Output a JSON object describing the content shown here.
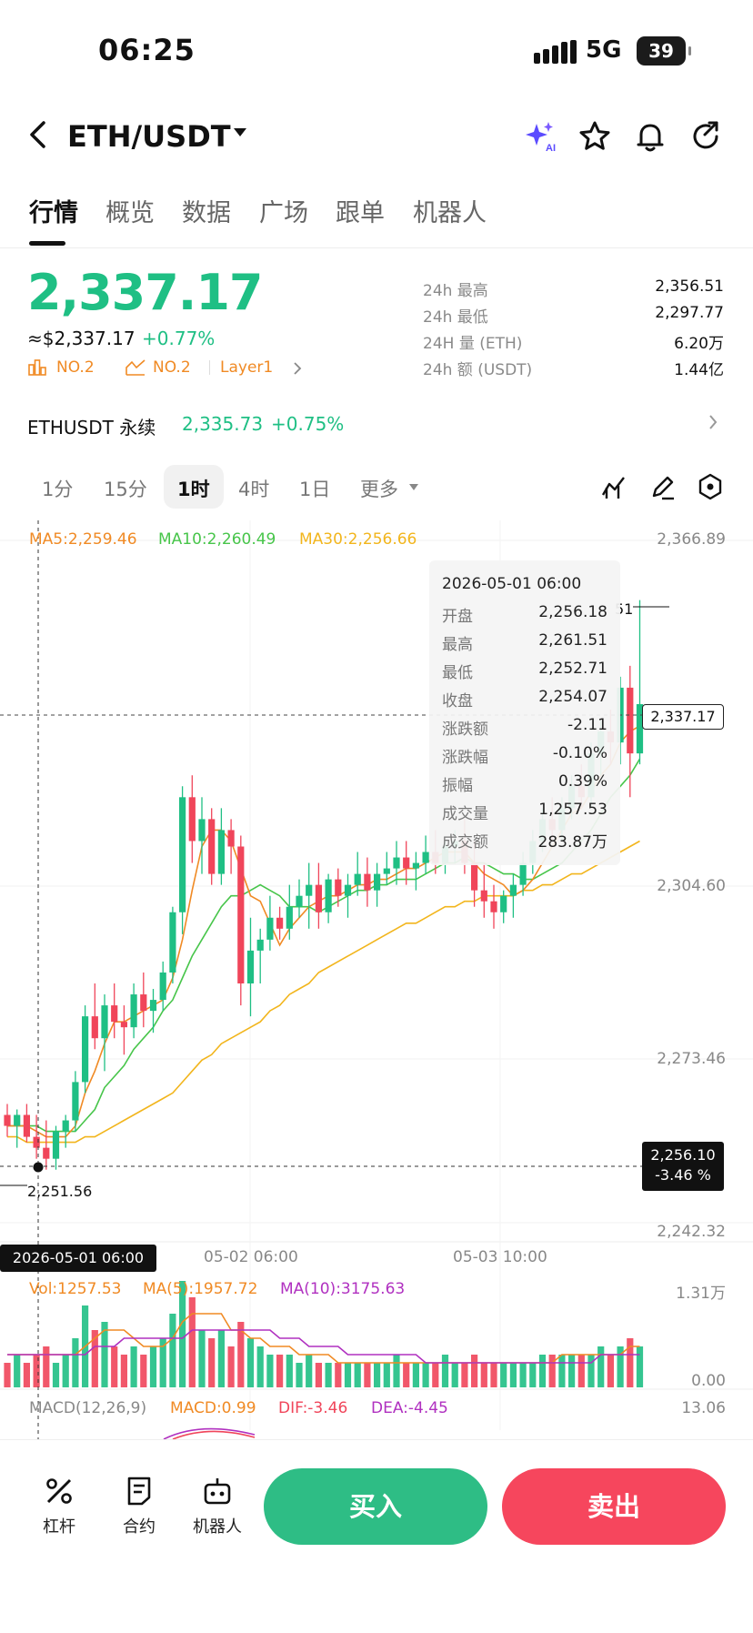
{
  "status_bar": {
    "time": "06:25",
    "network": "5G",
    "battery": "39"
  },
  "header": {
    "pair": "ETH/USDT",
    "icons": [
      "ai-sparkle-icon",
      "star-icon",
      "bell-icon",
      "share-icon"
    ]
  },
  "tabs": [
    "行情",
    "概览",
    "数据",
    "广场",
    "跟单",
    "机器人"
  ],
  "active_tab": "行情",
  "price": {
    "last": "2,337.17",
    "usd": "≈$2,337.17",
    "change": "+0.77%",
    "tags": [
      "NO.2",
      "NO.2",
      "Layer1"
    ]
  },
  "stats": [
    {
      "label": "24h  最高",
      "value": "2,356.51"
    },
    {
      "label": "24h  最低",
      "value": "2,297.77"
    },
    {
      "label": "24H  量 (ETH)",
      "value": "6.20万"
    },
    {
      "label": "24h  额 (USDT)",
      "value": "1.44亿"
    }
  ],
  "perp": {
    "name": "ETHUSDT 永续",
    "price": "2,335.73",
    "change": "+0.75%"
  },
  "intervals": [
    "1分",
    "15分",
    "1时",
    "4时",
    "1日",
    "更多"
  ],
  "active_interval": "1时",
  "ma_legend": {
    "ma5": "MA5:2,259.46",
    "ma10": "MA10:2,260.49",
    "ma30": "MA30:2,256.66"
  },
  "y_axis": [
    "2,366.89",
    "2,304.60",
    "2,273.46",
    "2,242.32"
  ],
  "x_axis": [
    "05-02 06:00",
    "05-03 10:00"
  ],
  "price_flag": "2,337.17",
  "crosshair": {
    "value": "2,256.10",
    "pct": "-3.46 %",
    "date": "2026-05-01 06:00",
    "low_marker": "2,251.56",
    "high_marker": "51"
  },
  "tooltip": {
    "date": "2026-05-01 06:00",
    "rows": [
      {
        "label": "开盘",
        "value": "2,256.18",
        "color": "#222222"
      },
      {
        "label": "最高",
        "value": "2,261.51",
        "color": "#222222"
      },
      {
        "label": "最低",
        "value": "2,252.71",
        "color": "#222222"
      },
      {
        "label": "收盘",
        "value": "2,254.07",
        "color": "#222222"
      },
      {
        "label": "涨跌额",
        "value": "-2.11",
        "color": "#f0455a"
      },
      {
        "label": "涨跌幅",
        "value": "-0.10%",
        "color": "#f0455a"
      },
      {
        "label": "振幅",
        "value": "0.39%",
        "color": "#222222"
      },
      {
        "label": "成交量",
        "value": "1,257.53",
        "color": "#222222"
      },
      {
        "label": "成交额",
        "value": "283.87万",
        "color": "#222222"
      }
    ]
  },
  "volume": {
    "vol": "Vol:1257.53",
    "ma5": "MA(5):1957.72",
    "ma10": "MA(10):3175.63",
    "max": "1.31万",
    "min": "0.00"
  },
  "macd": {
    "label": "MACD(12,26,9)",
    "macd": "MACD:0.99",
    "dif": "DIF:-3.46",
    "dea": "DEA:-4.45",
    "max": "13.06"
  },
  "bottom": {
    "leverage": "杠杆",
    "contract": "合约",
    "robot": "机器人",
    "buy": "买入",
    "sell": "卖出"
  },
  "colors": {
    "up": "#1fbf84",
    "down": "#f0455a",
    "ma5": "#f08a24",
    "ma10": "#47c54a",
    "ma30": "#f2b51c",
    "ma10_vol": "#b030c0"
  },
  "chart_data": {
    "type": "candlestick",
    "ylim": [
      2242.32,
      2366.89
    ],
    "candles": [
      [
        2262,
        2264,
        2258,
        2260
      ],
      [
        2260,
        2263,
        2256,
        2262
      ],
      [
        2262,
        2264,
        2257,
        2258
      ],
      [
        2258,
        2262,
        2254,
        2256
      ],
      [
        2256,
        2261,
        2252,
        2254
      ],
      [
        2254,
        2260,
        2252,
        2259
      ],
      [
        2259,
        2262,
        2256,
        2261
      ],
      [
        2261,
        2270,
        2259,
        2268
      ],
      [
        2268,
        2282,
        2266,
        2280
      ],
      [
        2280,
        2286,
        2274,
        2276
      ],
      [
        2276,
        2284,
        2270,
        2282
      ],
      [
        2282,
        2286,
        2276,
        2279
      ],
      [
        2279,
        2282,
        2273,
        2278
      ],
      [
        2278,
        2286,
        2276,
        2284
      ],
      [
        2284,
        2288,
        2278,
        2281
      ],
      [
        2281,
        2285,
        2277,
        2283
      ],
      [
        2283,
        2290,
        2281,
        2288
      ],
      [
        2288,
        2300,
        2286,
        2299
      ],
      [
        2299,
        2322,
        2295,
        2320
      ],
      [
        2320,
        2324,
        2308,
        2312
      ],
      [
        2312,
        2320,
        2306,
        2316
      ],
      [
        2316,
        2318,
        2304,
        2306
      ],
      [
        2306,
        2318,
        2304,
        2314
      ],
      [
        2314,
        2316,
        2306,
        2311
      ],
      [
        2311,
        2313,
        2282,
        2286
      ],
      [
        2286,
        2298,
        2280,
        2292
      ],
      [
        2292,
        2296,
        2286,
        2294
      ],
      [
        2294,
        2302,
        2292,
        2298
      ],
      [
        2298,
        2300,
        2294,
        2296
      ],
      [
        2296,
        2304,
        2294,
        2300
      ],
      [
        2300,
        2305,
        2298,
        2302
      ],
      [
        2302,
        2308,
        2296,
        2304
      ],
      [
        2304,
        2308,
        2296,
        2299
      ],
      [
        2299,
        2306,
        2297,
        2305
      ],
      [
        2305,
        2307,
        2300,
        2302
      ],
      [
        2302,
        2306,
        2298,
        2304
      ],
      [
        2304,
        2310,
        2302,
        2306
      ],
      [
        2306,
        2309,
        2300,
        2303
      ],
      [
        2303,
        2308,
        2300,
        2306
      ],
      [
        2306,
        2310,
        2304,
        2307
      ],
      [
        2307,
        2312,
        2304,
        2309
      ],
      [
        2309,
        2312,
        2304,
        2307
      ],
      [
        2307,
        2310,
        2303,
        2308
      ],
      [
        2308,
        2313,
        2306,
        2310
      ],
      [
        2310,
        2314,
        2306,
        2308
      ],
      [
        2308,
        2312,
        2306,
        2311
      ],
      [
        2311,
        2314,
        2308,
        2312
      ],
      [
        2312,
        2316,
        2306,
        2308
      ],
      [
        2308,
        2312,
        2300,
        2303
      ],
      [
        2303,
        2308,
        2298,
        2301
      ],
      [
        2301,
        2304,
        2296,
        2299
      ],
      [
        2299,
        2303,
        2297,
        2302
      ],
      [
        2302,
        2306,
        2298,
        2304
      ],
      [
        2304,
        2310,
        2302,
        2308
      ],
      [
        2308,
        2314,
        2306,
        2312
      ],
      [
        2312,
        2318,
        2310,
        2316
      ],
      [
        2316,
        2320,
        2312,
        2314
      ],
      [
        2314,
        2320,
        2312,
        2318
      ],
      [
        2318,
        2324,
        2316,
        2322
      ],
      [
        2322,
        2326,
        2318,
        2320
      ],
      [
        2320,
        2330,
        2318,
        2328
      ],
      [
        2328,
        2334,
        2324,
        2332
      ],
      [
        2332,
        2336,
        2326,
        2330
      ],
      [
        2330,
        2342,
        2326,
        2340
      ],
      [
        2340,
        2344,
        2320,
        2328
      ],
      [
        2328,
        2356,
        2326,
        2337
      ]
    ],
    "ma5": [
      2260,
      2260,
      2260,
      2259,
      2258,
      2258,
      2258,
      2260,
      2266,
      2270,
      2275,
      2279,
      2279,
      2280,
      2281,
      2282,
      2283,
      2287,
      2294,
      2303,
      2311,
      2314,
      2314,
      2312,
      2307,
      2302,
      2301,
      2297,
      2293,
      2296,
      2298,
      2300,
      2301,
      2302,
      2302,
      2303,
      2304,
      2304,
      2305,
      2305,
      2306,
      2307,
      2307,
      2308,
      2309,
      2310,
      2310,
      2310,
      2308,
      2306,
      2305,
      2304,
      2302,
      2303,
      2305,
      2308,
      2311,
      2314,
      2317,
      2318,
      2321,
      2324,
      2326,
      2330,
      2332,
      2333
    ],
    "ma10": [
      2260,
      2260,
      2260,
      2260,
      2259,
      2259,
      2259,
      2259,
      2261,
      2263,
      2267,
      2269,
      2271,
      2274,
      2276,
      2278,
      2281,
      2283,
      2287,
      2291,
      2294,
      2297,
      2300,
      2302,
      2302,
      2303,
      2304,
      2303,
      2302,
      2300,
      2300,
      2300,
      2299,
      2300,
      2301,
      2302,
      2303,
      2303,
      2304,
      2304,
      2305,
      2305,
      2305,
      2306,
      2307,
      2308,
      2308,
      2309,
      2308,
      2308,
      2307,
      2306,
      2306,
      2305,
      2305,
      2306,
      2307,
      2308,
      2310,
      2312,
      2314,
      2317,
      2320,
      2322,
      2324,
      2327
    ],
    "ma30": [
      2258,
      2258,
      2257,
      2257,
      2257,
      2257,
      2257,
      2257,
      2258,
      2258,
      2259,
      2260,
      2261,
      2262,
      2263,
      2264,
      2265,
      2266,
      2268,
      2270,
      2272,
      2273,
      2275,
      2276,
      2277,
      2278,
      2279,
      2281,
      2282,
      2284,
      2285,
      2286,
      2288,
      2289,
      2290,
      2291,
      2292,
      2293,
      2294,
      2295,
      2296,
      2297,
      2297,
      2298,
      2299,
      2300,
      2300,
      2301,
      2301,
      2302,
      2302,
      2302,
      2302,
      2303,
      2303,
      2304,
      2304,
      2305,
      2306,
      2306,
      2307,
      2308,
      2309,
      2310,
      2311,
      2312
    ],
    "volume": [
      3,
      4,
      3,
      4,
      5,
      3,
      4,
      6,
      10,
      7,
      8,
      5,
      4,
      5,
      4,
      5,
      6,
      9,
      13,
      11,
      7,
      6,
      7,
      5,
      8,
      6,
      5,
      4,
      4,
      4,
      3,
      4,
      3,
      3,
      3,
      3,
      3,
      3,
      3,
      3,
      4,
      3,
      3,
      3,
      3,
      4,
      3,
      3,
      4,
      3,
      3,
      3,
      3,
      3,
      3,
      4,
      4,
      4,
      4,
      4,
      4,
      5,
      4,
      5,
      6,
      5
    ],
    "vol_ma5": [
      4,
      4,
      4,
      4,
      4,
      4,
      4,
      4,
      5,
      6,
      7,
      7,
      7,
      6,
      5,
      5,
      5,
      6,
      8,
      9,
      9,
      9,
      9,
      7,
      7,
      6,
      6,
      5,
      5,
      5,
      4,
      4,
      4,
      4,
      3,
      3,
      3,
      3,
      3,
      3,
      3,
      3,
      3,
      3,
      3,
      3,
      3,
      3,
      3,
      3,
      3,
      3,
      3,
      3,
      3,
      3,
      3,
      4,
      4,
      4,
      4,
      4,
      4,
      4,
      5,
      5
    ],
    "vol_ma10": [
      4,
      4,
      4,
      4,
      4,
      4,
      4,
      4,
      4,
      5,
      5,
      5,
      6,
      6,
      6,
      6,
      6,
      6,
      6,
      7,
      7,
      7,
      7,
      7,
      7,
      7,
      7,
      7,
      6,
      6,
      6,
      5,
      5,
      5,
      5,
      4,
      4,
      4,
      4,
      4,
      4,
      4,
      4,
      3,
      3,
      3,
      3,
      3,
      3,
      3,
      3,
      3,
      3,
      3,
      3,
      3,
      3,
      3,
      3,
      3,
      3,
      4,
      4,
      4,
      4,
      4
    ],
    "vol_max": 13,
    "x_labels": [
      "05-02 06:00",
      "05-03 10:00"
    ]
  }
}
